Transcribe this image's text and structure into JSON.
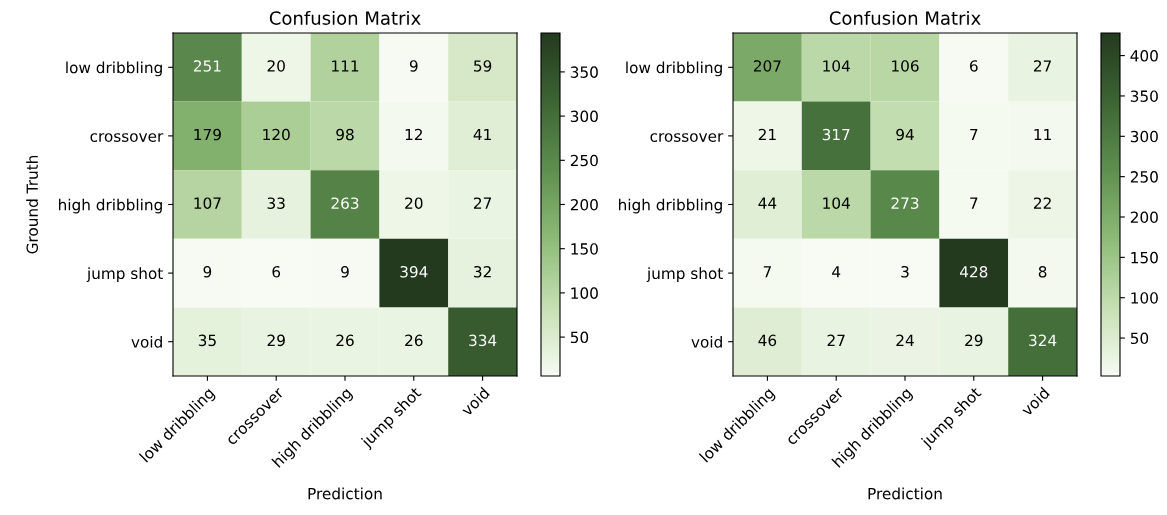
{
  "chart_data": [
    {
      "type": "heatmap",
      "title": "Confusion Matrix",
      "xlabel": "Prediction",
      "ylabel": "Ground Truth",
      "categories": [
        "low dribbling",
        "crossover",
        "high dribbling",
        "jump shot",
        "void"
      ],
      "y_categories": [
        "low dribbling",
        "crossover",
        "high dribbling",
        "jump shot",
        "void"
      ],
      "cells": [
        [
          251,
          20,
          111,
          9,
          59
        ],
        [
          179,
          120,
          98,
          12,
          41
        ],
        [
          107,
          33,
          263,
          20,
          27
        ],
        [
          9,
          6,
          9,
          394,
          32
        ],
        [
          35,
          29,
          26,
          26,
          334
        ]
      ],
      "data_labels": true,
      "clim": [
        6,
        394
      ],
      "cticks": [
        50,
        100,
        150,
        200,
        250,
        300,
        350
      ]
    },
    {
      "type": "heatmap",
      "title": "Confusion Matrix",
      "xlabel": "Prediction",
      "categories": [
        "low dribbling",
        "crossover",
        "high dribbling",
        "jump shot",
        "void"
      ],
      "y_categories": [
        "low dribbling",
        "crossover",
        "high dribbling",
        "jump shot",
        "void"
      ],
      "cells": [
        [
          207,
          104,
          106,
          6,
          27
        ],
        [
          21,
          317,
          94,
          7,
          11
        ],
        [
          44,
          104,
          273,
          7,
          22
        ],
        [
          7,
          4,
          3,
          428,
          8
        ],
        [
          46,
          27,
          24,
          29,
          324
        ]
      ],
      "data_labels": true,
      "clim": [
        3,
        428
      ],
      "cticks": [
        50,
        100,
        150,
        200,
        250,
        300,
        350,
        400
      ]
    }
  ]
}
